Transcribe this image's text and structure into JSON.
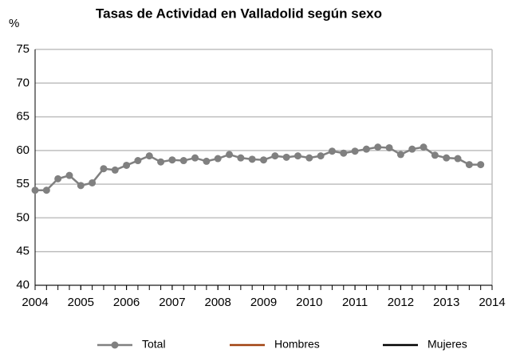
{
  "chart_data": {
    "type": "line",
    "title": "Tasas de Actividad en Valladolid según sexo",
    "y_label": "%",
    "x": [
      2004,
      2004.25,
      2004.5,
      2004.75,
      2005,
      2005.25,
      2005.5,
      2005.75,
      2006,
      2006.25,
      2006.5,
      2006.75,
      2007,
      2007.25,
      2007.5,
      2007.75,
      2008,
      2008.25,
      2008.5,
      2008.75,
      2009,
      2009.25,
      2009.5,
      2009.75,
      2010,
      2010.25,
      2010.5,
      2010.75,
      2011,
      2011.25,
      2011.5,
      2011.75,
      2012,
      2012.25,
      2012.5,
      2012.75,
      2013,
      2013.25,
      2013.5,
      2013.75
    ],
    "series": [
      {
        "name": "Total",
        "color": "#808080",
        "markers": true,
        "values": [
          54.1,
          54.1,
          55.8,
          56.3,
          54.8,
          55.2,
          57.3,
          57.1,
          57.8,
          58.5,
          59.2,
          58.3,
          58.6,
          58.5,
          58.9,
          58.4,
          58.8,
          59.4,
          58.9,
          58.7,
          58.6,
          59.2,
          59.0,
          59.2,
          58.9,
          59.2,
          59.9,
          59.6,
          59.9,
          60.2,
          60.5,
          60.4,
          59.4,
          60.2,
          60.5,
          59.3,
          58.9,
          58.8,
          57.9,
          57.9
        ]
      },
      {
        "name": "Hombres",
        "color": "#a0410f",
        "markers": false,
        "values": [
          null,
          null,
          null,
          null,
          null,
          null,
          null,
          null,
          null,
          null,
          null,
          null,
          null,
          null,
          null,
          null,
          null,
          null,
          null,
          null,
          null,
          null,
          null,
          null,
          null,
          null,
          null,
          null,
          null,
          null,
          null,
          null,
          null,
          null,
          null,
          null,
          null,
          null,
          null,
          null
        ]
      },
      {
        "name": "Mujeres",
        "color": "#000000",
        "markers": false,
        "values": [
          null,
          null,
          null,
          null,
          null,
          null,
          null,
          null,
          null,
          null,
          null,
          null,
          null,
          null,
          null,
          null,
          null,
          null,
          null,
          null,
          null,
          null,
          null,
          null,
          null,
          null,
          null,
          null,
          null,
          null,
          null,
          null,
          null,
          null,
          null,
          null,
          null,
          null,
          null,
          null
        ]
      }
    ],
    "xlim": [
      2004,
      2014
    ],
    "xticks": [
      2004,
      2005,
      2006,
      2007,
      2008,
      2009,
      2010,
      2011,
      2012,
      2013,
      2014
    ],
    "ylim": [
      40,
      75
    ],
    "yticks": [
      40,
      45,
      50,
      55,
      60,
      65,
      70,
      75
    ],
    "grid": true
  }
}
